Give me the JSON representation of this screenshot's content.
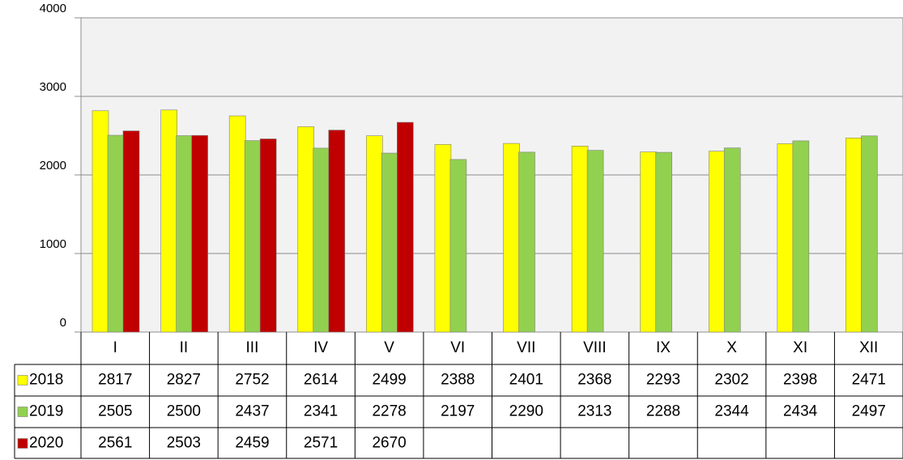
{
  "chart_data": {
    "type": "bar",
    "categories": [
      "I",
      "II",
      "III",
      "IV",
      "V",
      "VI",
      "VII",
      "VIII",
      "IX",
      "X",
      "XI",
      "XII"
    ],
    "series": [
      {
        "name": "2018",
        "color": "#ffff00",
        "values": [
          2817,
          2827,
          2752,
          2614,
          2499,
          2388,
          2401,
          2368,
          2293,
          2302,
          2398,
          2471
        ]
      },
      {
        "name": "2019",
        "color": "#92d050",
        "values": [
          2505,
          2500,
          2437,
          2341,
          2278,
          2197,
          2290,
          2313,
          2288,
          2344,
          2434,
          2497
        ]
      },
      {
        "name": "2020",
        "color": "#c00000",
        "values": [
          2561,
          2503,
          2459,
          2571,
          2670,
          null,
          null,
          null,
          null,
          null,
          null,
          null
        ]
      }
    ],
    "ylim": [
      0,
      4000
    ],
    "yticks": [
      0,
      1000,
      2000,
      3000,
      4000
    ],
    "grid": true
  }
}
